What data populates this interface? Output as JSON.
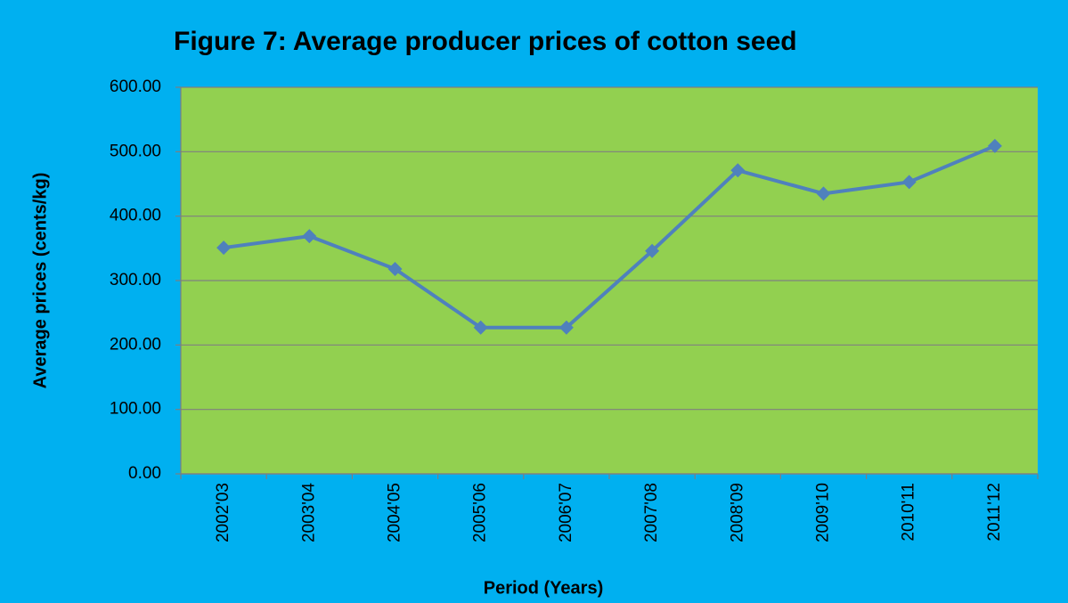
{
  "chart_data": {
    "type": "line",
    "title": "Figure 7: Average producer prices of cotton seed",
    "x_label": "Period (Years)",
    "y_label": "Average prices (cents/kg)",
    "categories": [
      "2002'03",
      "2003'04",
      "2004'05",
      "2005'06",
      "2006'07",
      "2007'08",
      "2008'09",
      "2009'10",
      "2010'11",
      "2011'12"
    ],
    "series": [
      {
        "name": "Average prices",
        "color": "#4f81bd",
        "values": [
          351,
          369,
          318,
          227,
          227,
          346,
          471,
          435,
          453,
          509
        ]
      }
    ],
    "ylim": [
      0,
      600
    ],
    "yticks": [
      {
        "value": 0,
        "label": "0.00"
      },
      {
        "value": 100,
        "label": "100.00"
      },
      {
        "value": 200,
        "label": "200.00"
      },
      {
        "value": 300,
        "label": "300.00"
      },
      {
        "value": 400,
        "label": "400.00"
      },
      {
        "value": 500,
        "label": "500.00"
      },
      {
        "value": 600,
        "label": "600.00"
      }
    ],
    "grid": true
  }
}
